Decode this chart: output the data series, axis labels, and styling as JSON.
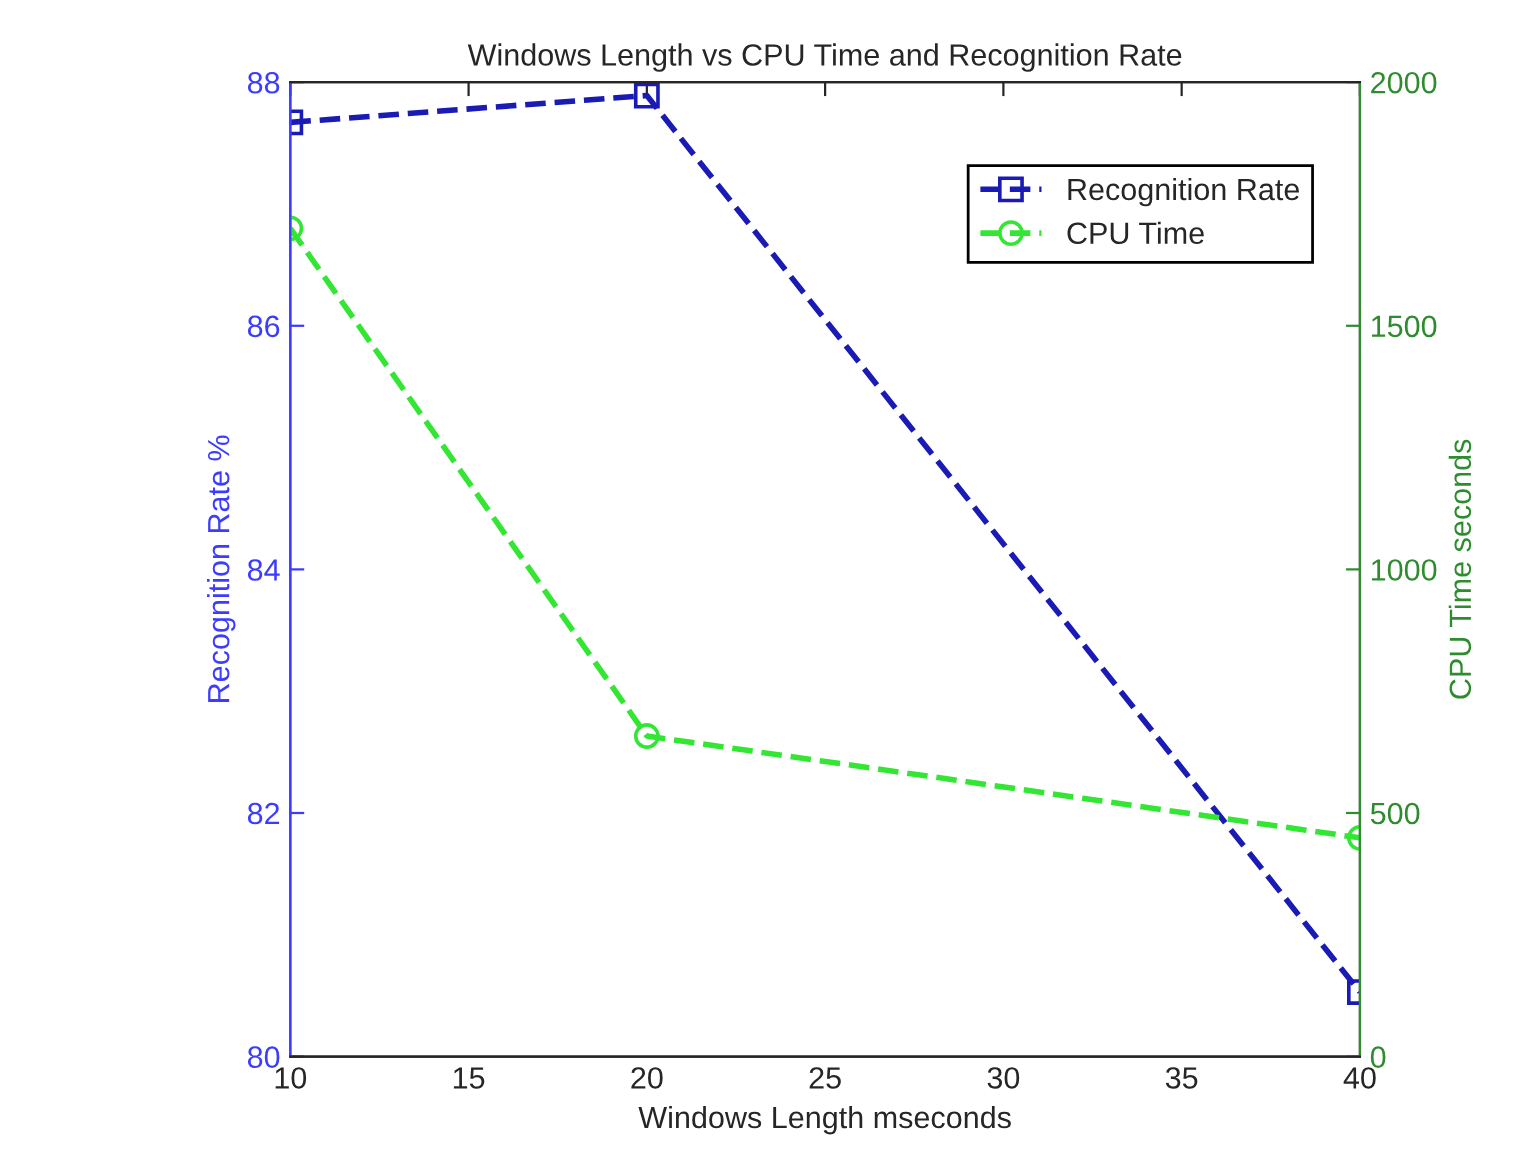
{
  "chart_data": {
    "type": "line",
    "title": "Windows Length vs CPU Time and Recognition Rate",
    "xlabel": "Windows Length mseconds",
    "ylabel": "Recognition Rate %",
    "y2label": "CPU Time seconds",
    "x": [
      10,
      20,
      40
    ],
    "series": [
      {
        "name": "Recognition Rate",
        "color": "#1a1ab4",
        "values": [
          87.67,
          87.89,
          80.53
        ],
        "marker": "square",
        "line_style": "dashed"
      },
      {
        "name": "CPU Time",
        "color": "#33e633",
        "values": [
          1700,
          658,
          449
        ],
        "marker": "circle",
        "line_style": "dashed",
        "axis": "y2"
      }
    ],
    "xlim": [
      10,
      40
    ],
    "xticks": [
      10,
      15,
      20,
      25,
      30,
      35,
      40
    ],
    "ylim": [
      80,
      88
    ],
    "yticks": [
      80,
      82,
      84,
      86,
      88
    ],
    "y2lim": [
      0,
      2000
    ],
    "y2ticks": [
      0,
      500,
      1000,
      1500,
      2000
    ],
    "grid": false,
    "legend": "top right"
  }
}
